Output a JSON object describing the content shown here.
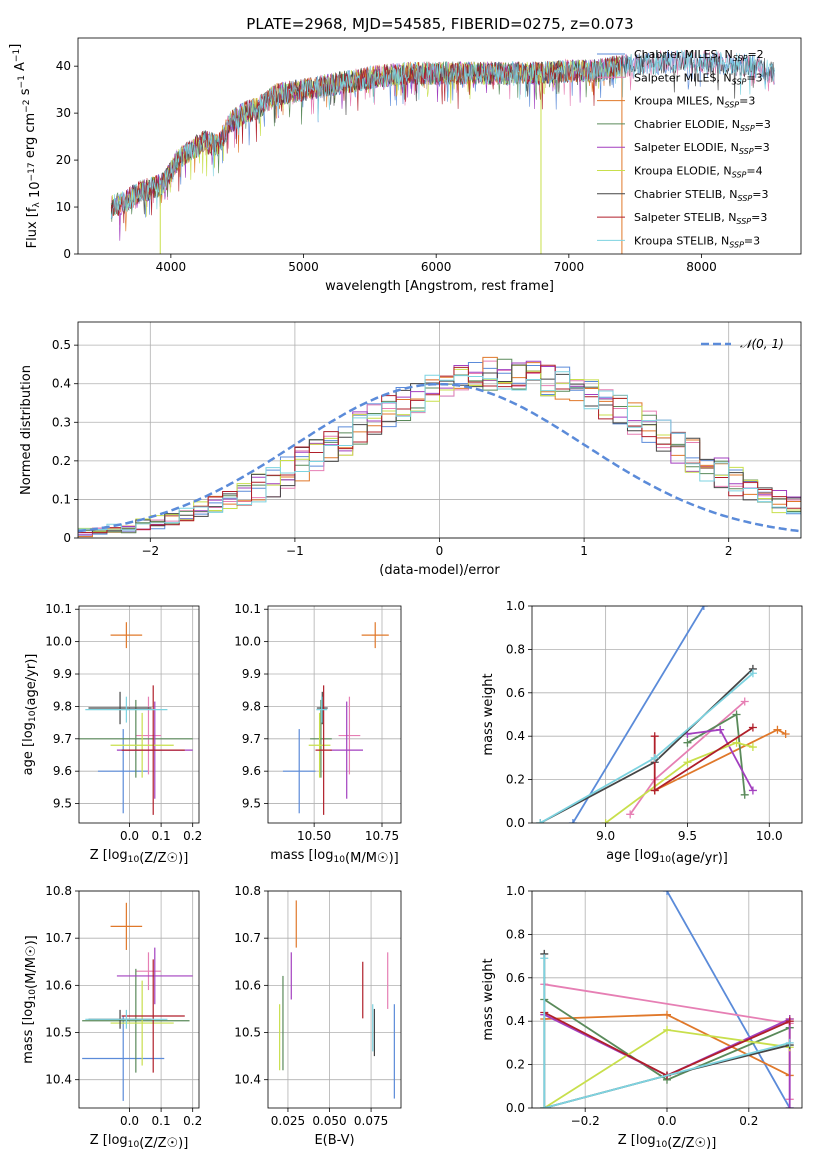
{
  "figure": {
    "title": "PLATE=2968, MJD=54585, FIBERID=0275, z=0.073"
  },
  "colors": {
    "Chabrier MILES": "#5b8bd9",
    "Salpeter MILES": "#e67fb4",
    "Kroupa MILES": "#e0782a",
    "Chabrier ELODIE": "#5a8a5a",
    "Salpeter ELODIE": "#a23fbf",
    "Kroupa ELODIE": "#c8df4c",
    "Chabrier STELIB": "#454545",
    "Salpeter STELIB": "#b01f2a",
    "Kroupa STELIB": "#7dd3e0",
    "normal_curve": "#5b8bd9"
  },
  "chart_data": [
    {
      "type": "line",
      "id": "spectrum",
      "xlabel": "wavelength [Angstrom, rest frame]",
      "ylabel": "Flux [f_λ 10^-17 erg cm^-2 s^-1 A^-1]",
      "xlim": [
        3300,
        8750
      ],
      "ylim": [
        0,
        46
      ],
      "xticks": [
        4000,
        5000,
        6000,
        7000,
        8000
      ],
      "yticks": [
        0,
        10,
        20,
        30,
        40
      ],
      "grid": false,
      "legend_position": "right",
      "legend": [
        {
          "label": "Chabrier MILES, N",
          "sub": "SSP",
          "suffix": "=2"
        },
        {
          "label": "Salpeter MILES, N",
          "sub": "SSP",
          "suffix": "=3"
        },
        {
          "label": "Kroupa MILES, N",
          "sub": "SSP",
          "suffix": "=3"
        },
        {
          "label": "Chabrier ELODIE, N",
          "sub": "SSP",
          "suffix": "=3"
        },
        {
          "label": "Salpeter ELODIE, N",
          "sub": "SSP",
          "suffix": "=3"
        },
        {
          "label": "Kroupa ELODIE, N",
          "sub": "SSP",
          "suffix": "=4"
        },
        {
          "label": "Chabrier STELIB, N",
          "sub": "SSP",
          "suffix": "=3"
        },
        {
          "label": "Salpeter STELIB, N",
          "sub": "SSP",
          "suffix": "=3"
        },
        {
          "label": "Kroupa STELIB, N",
          "sub": "SSP",
          "suffix": "=3"
        }
      ],
      "continuum": {
        "x": [
          3550,
          3650,
          3750,
          3850,
          3950,
          4050,
          4150,
          4250,
          4350,
          4450,
          4550,
          4650,
          4800,
          5000,
          5200,
          5400,
          5600,
          5800,
          6000,
          6200,
          6400,
          6600,
          6800,
          7000,
          7200,
          7400,
          7600,
          7800,
          8000,
          8200,
          8400,
          8550
        ],
        "y": [
          10,
          11,
          13,
          14,
          15,
          20,
          22,
          24,
          23,
          28,
          30,
          31,
          34,
          35,
          36,
          37,
          38,
          38.5,
          38.5,
          38.5,
          38.5,
          38.5,
          38.5,
          39,
          39,
          40,
          40.5,
          41,
          41,
          40.5,
          40,
          38.5
        ]
      },
      "spikes": [
        {
          "series": "Kroupa ELODIE",
          "x": 3920,
          "y": 0
        },
        {
          "series": "Kroupa ELODIE",
          "x": 6790,
          "y": 0
        },
        {
          "series": "Kroupa MILES",
          "x": 7400,
          "y": 0
        }
      ]
    },
    {
      "type": "histogram",
      "id": "residuals",
      "xlabel": "(data-model)/error",
      "ylabel": "Normed distribution",
      "xlim": [
        -2.5,
        2.5
      ],
      "ylim": [
        0,
        0.56
      ],
      "xticks": [
        -2,
        -1,
        0,
        1,
        2
      ],
      "yticks": [
        0,
        0.1,
        0.2,
        0.3,
        0.4,
        0.5
      ],
      "grid": true,
      "legend": [
        {
          "label": "𝒩(0, 1)"
        }
      ],
      "legend_position": "top-right",
      "bin_width": 0.1,
      "bin_start": -2.5,
      "base_values": [
        0.016,
        0.018,
        0.022,
        0.027,
        0.033,
        0.04,
        0.048,
        0.058,
        0.07,
        0.083,
        0.097,
        0.113,
        0.13,
        0.149,
        0.169,
        0.191,
        0.213,
        0.236,
        0.259,
        0.283,
        0.306,
        0.328,
        0.349,
        0.368,
        0.385,
        0.4,
        0.412,
        0.42,
        0.426,
        0.428,
        0.427,
        0.422,
        0.413,
        0.402,
        0.387,
        0.37,
        0.351,
        0.33,
        0.308,
        0.285,
        0.261,
        0.237,
        0.214,
        0.191,
        0.169,
        0.149,
        0.129,
        0.111,
        0.095,
        0.08
      ],
      "series_order": [
        "Chabrier MILES",
        "Salpeter MILES",
        "Kroupa MILES",
        "Chabrier ELODIE",
        "Salpeter ELODIE",
        "Kroupa ELODIE",
        "Chabrier STELIB",
        "Salpeter STELIB",
        "Kroupa STELIB"
      ]
    },
    {
      "type": "scatter",
      "id": "age-vs-Z",
      "xlabel": "Z [log10(Z/Z☉)]",
      "ylabel": "age  [log10(age/yr)]",
      "xlim": [
        -0.16,
        0.22
      ],
      "ylim": [
        9.44,
        10.11
      ],
      "xticks": [
        0.0,
        0.1,
        0.2
      ],
      "xticklabels": [
        "0.0",
        "0.1",
        "0.2"
      ],
      "yticks": [
        9.5,
        9.6,
        9.7,
        9.8,
        9.9,
        10.0,
        10.1
      ],
      "yticklabels": [
        "9.5",
        "9.6",
        "9.7",
        "9.8",
        "9.9",
        "10.0",
        "10.1"
      ],
      "grid": true,
      "points": [
        {
          "series": "Kroupa MILES",
          "x": -0.01,
          "y": 10.02,
          "xerr": 0.05,
          "yerr": 0.04
        },
        {
          "series": "Chabrier MILES",
          "x": -0.02,
          "y": 9.6,
          "xerr": 0.08,
          "yerr": 0.13
        },
        {
          "series": "Salpeter MILES",
          "x": 0.06,
          "y": 9.71,
          "xerr": 0.04,
          "yerr": 0.12
        },
        {
          "series": "Chabrier ELODIE",
          "x": 0.02,
          "y": 9.7,
          "xerr": 0.18,
          "yerr": 0.12
        },
        {
          "series": "Salpeter ELODIE",
          "x": 0.08,
          "y": 9.665,
          "xerr": 0.12,
          "yerr": 0.15
        },
        {
          "series": "Kroupa ELODIE",
          "x": 0.04,
          "y": 9.68,
          "xerr": 0.1,
          "yerr": 0.1
        },
        {
          "series": "Chabrier STELIB",
          "x": -0.03,
          "y": 9.795,
          "xerr": 0.1,
          "yerr": 0.05
        },
        {
          "series": "Salpeter STELIB",
          "x": 0.075,
          "y": 9.665,
          "xerr": 0.1,
          "yerr": 0.2
        },
        {
          "series": "Kroupa STELIB",
          "x": -0.01,
          "y": 9.79,
          "xerr": 0.13,
          "yerr": 0.04
        }
      ]
    },
    {
      "type": "scatter",
      "id": "age-vs-mass",
      "xlabel": "mass [log10(M/M☉)]",
      "ylabel": "",
      "xlim": [
        10.33,
        10.82
      ],
      "ylim": [
        9.44,
        10.11
      ],
      "xticks": [
        10.5,
        10.75
      ],
      "xticklabels": [
        "10.50",
        "10.75"
      ],
      "yticks": [
        9.5,
        9.6,
        9.7,
        9.8,
        9.9,
        10.0,
        10.1
      ],
      "yticklabels": [
        "9.5",
        "9.6",
        "9.7",
        "9.8",
        "9.9",
        "10.0",
        "10.1"
      ],
      "grid": true,
      "points": [
        {
          "series": "Kroupa MILES",
          "x": 10.725,
          "y": 10.02,
          "xerr": 0.05,
          "yerr": 0.04
        },
        {
          "series": "Chabrier MILES",
          "x": 10.445,
          "y": 9.6,
          "xerr": 0.06,
          "yerr": 0.13
        },
        {
          "series": "Salpeter MILES",
          "x": 10.63,
          "y": 9.71,
          "xerr": 0.04,
          "yerr": 0.12
        },
        {
          "series": "Chabrier ELODIE",
          "x": 10.525,
          "y": 9.7,
          "xerr": 0.04,
          "yerr": 0.12
        },
        {
          "series": "Salpeter ELODIE",
          "x": 10.62,
          "y": 9.665,
          "xerr": 0.06,
          "yerr": 0.15
        },
        {
          "series": "Kroupa ELODIE",
          "x": 10.52,
          "y": 9.68,
          "xerr": 0.04,
          "yerr": 0.1
        },
        {
          "series": "Chabrier STELIB",
          "x": 10.53,
          "y": 9.795,
          "xerr": 0.02,
          "yerr": 0.05
        },
        {
          "series": "Salpeter STELIB",
          "x": 10.535,
          "y": 9.665,
          "xerr": 0.03,
          "yerr": 0.2
        },
        {
          "series": "Kroupa STELIB",
          "x": 10.528,
          "y": 9.79,
          "xerr": 0.02,
          "yerr": 0.04
        }
      ]
    },
    {
      "type": "line",
      "id": "weight-vs-age",
      "xlabel": "age  [log10(age/yr)]",
      "ylabel": "mass weight",
      "xlim": [
        8.55,
        10.2
      ],
      "ylim": [
        0,
        1.0
      ],
      "xticks": [
        9.0,
        9.5,
        10.0
      ],
      "xticklabels": [
        "9.0",
        "9.5",
        "10.0"
      ],
      "yticks": [
        0.0,
        0.2,
        0.4,
        0.6,
        0.8,
        1.0
      ],
      "yticklabels": [
        "0.0",
        "0.2",
        "0.4",
        "0.6",
        "0.8",
        "1.0"
      ],
      "grid": true,
      "series": [
        {
          "name": "Chabrier MILES",
          "x": [
            8.8,
            9.6
          ],
          "y": [
            0.0,
            1.0
          ]
        },
        {
          "name": "Salpeter MILES",
          "x": [
            9.15,
            9.3,
            9.85
          ],
          "y": [
            0.04,
            0.2,
            0.56
          ]
        },
        {
          "name": "Kroupa MILES",
          "x": [
            9.3,
            10.05,
            10.1
          ],
          "y": [
            0.15,
            0.43,
            0.41
          ]
        },
        {
          "name": "Chabrier ELODIE",
          "x": [
            9.5,
            9.8,
            9.85
          ],
          "y": [
            0.37,
            0.5,
            0.13
          ]
        },
        {
          "name": "Salpeter ELODIE",
          "x": [
            9.5,
            9.7,
            9.9
          ],
          "y": [
            0.41,
            0.43,
            0.15
          ]
        },
        {
          "name": "Kroupa ELODIE",
          "x": [
            9.0,
            9.5,
            9.8,
            9.9
          ],
          "y": [
            0.0,
            0.28,
            0.37,
            0.35
          ]
        },
        {
          "name": "Chabrier STELIB",
          "x": [
            8.6,
            9.3,
            9.9
          ],
          "y": [
            0.0,
            0.28,
            0.71
          ]
        },
        {
          "name": "Salpeter STELIB",
          "x": [
            9.3,
            9.3,
            9.9
          ],
          "y": [
            0.4,
            0.15,
            0.44
          ]
        },
        {
          "name": "Kroupa STELIB",
          "x": [
            8.6,
            9.3,
            9.9
          ],
          "y": [
            0.0,
            0.3,
            0.69
          ]
        }
      ]
    },
    {
      "type": "scatter",
      "id": "mass-vs-Z",
      "xlabel": "Z [log10(Z/Z☉)]",
      "ylabel": "mass [log10(M/M☉)]",
      "xlim": [
        -0.16,
        0.22
      ],
      "ylim": [
        10.34,
        10.8
      ],
      "xticks": [
        0.0,
        0.1,
        0.2
      ],
      "xticklabels": [
        "0.0",
        "0.1",
        "0.2"
      ],
      "yticks": [
        10.4,
        10.5,
        10.6,
        10.7,
        10.8
      ],
      "yticklabels": [
        "10.4",
        "10.5",
        "10.6",
        "10.7",
        "10.8"
      ],
      "grid": true,
      "points": [
        {
          "series": "Kroupa MILES",
          "x": -0.01,
          "y": 10.725,
          "xerr": 0.05,
          "yerr": 0.05
        },
        {
          "series": "Chabrier MILES",
          "x": -0.02,
          "y": 10.445,
          "xerr": 0.13,
          "yerr": 0.09
        },
        {
          "series": "Salpeter MILES",
          "x": 0.06,
          "y": 10.63,
          "xerr": 0.04,
          "yerr": 0.04
        },
        {
          "series": "Chabrier ELODIE",
          "x": 0.02,
          "y": 10.525,
          "xerr": 0.17,
          "yerr": 0.11
        },
        {
          "series": "Salpeter ELODIE",
          "x": 0.08,
          "y": 10.62,
          "xerr": 0.12,
          "yerr": 0.06
        },
        {
          "series": "Kroupa ELODIE",
          "x": 0.04,
          "y": 10.52,
          "xerr": 0.1,
          "yerr": 0.09
        },
        {
          "series": "Chabrier STELIB",
          "x": -0.03,
          "y": 10.528,
          "xerr": 0.1,
          "yerr": 0.02
        },
        {
          "series": "Salpeter STELIB",
          "x": 0.075,
          "y": 10.535,
          "xerr": 0.1,
          "yerr": 0.12
        },
        {
          "series": "Kroupa STELIB",
          "x": -0.01,
          "y": 10.528,
          "xerr": 0.13,
          "yerr": 0.02
        }
      ]
    },
    {
      "type": "scatter",
      "id": "mass-vs-ebv",
      "xlabel": "E(B-V)",
      "ylabel": "",
      "xlim": [
        0.013,
        0.093
      ],
      "ylim": [
        10.34,
        10.8
      ],
      "xticks": [
        0.025,
        0.05,
        0.075
      ],
      "xticklabels": [
        "0.025",
        "0.050",
        "0.075"
      ],
      "yticks": [
        10.4,
        10.5,
        10.6,
        10.7,
        10.8
      ],
      "yticklabels": [
        "10.4",
        "10.5",
        "10.6",
        "10.7",
        "10.8"
      ],
      "grid": true,
      "points": [
        {
          "series": "Kroupa MILES",
          "x": 0.03,
          "y": 10.73,
          "xerr": 0.0,
          "yerr": 0.05
        },
        {
          "series": "Chabrier MILES",
          "x": 0.089,
          "y": 10.46,
          "xerr": 0.0,
          "yerr": 0.1
        },
        {
          "series": "Salpeter MILES",
          "x": 0.085,
          "y": 10.61,
          "xerr": 0.0,
          "yerr": 0.06
        },
        {
          "series": "Chabrier ELODIE",
          "x": 0.022,
          "y": 10.52,
          "xerr": 0.0,
          "yerr": 0.1
        },
        {
          "series": "Salpeter ELODIE",
          "x": 0.027,
          "y": 10.62,
          "xerr": 0.0,
          "yerr": 0.05
        },
        {
          "series": "Kroupa ELODIE",
          "x": 0.02,
          "y": 10.49,
          "xerr": 0.0,
          "yerr": 0.07
        },
        {
          "series": "Chabrier STELIB",
          "x": 0.077,
          "y": 10.5,
          "xerr": 0.0,
          "yerr": 0.05
        },
        {
          "series": "Salpeter STELIB",
          "x": 0.07,
          "y": 10.59,
          "xerr": 0.0,
          "yerr": 0.06
        },
        {
          "series": "Kroupa STELIB",
          "x": 0.076,
          "y": 10.51,
          "xerr": 0.0,
          "yerr": 0.05
        }
      ]
    },
    {
      "type": "line",
      "id": "weight-vs-Z",
      "xlabel": "Z [log10(Z/Z☉)]",
      "ylabel": "mass weight",
      "xlim": [
        -0.33,
        0.33
      ],
      "ylim": [
        0,
        1.0
      ],
      "xticks": [
        -0.2,
        0.0,
        0.2
      ],
      "xticklabels": [
        "−0.2",
        "0.0",
        "0.2"
      ],
      "yticks": [
        0.0,
        0.2,
        0.4,
        0.6,
        0.8,
        1.0
      ],
      "yticklabels": [
        "0.0",
        "0.2",
        "0.4",
        "0.6",
        "0.8",
        "1.0"
      ],
      "grid": true,
      "series": [
        {
          "name": "Chabrier MILES",
          "x": [
            0.0,
            0.3
          ],
          "y": [
            1.0,
            0.0
          ]
        },
        {
          "name": "Salpeter MILES",
          "x": [
            -0.3,
            0.3,
            0.3
          ],
          "y": [
            0.57,
            0.39,
            0.04
          ]
        },
        {
          "name": "Kroupa MILES",
          "x": [
            -0.3,
            0.0,
            0.3,
            0.3
          ],
          "y": [
            0.41,
            0.43,
            0.15,
            0.41
          ]
        },
        {
          "name": "Chabrier ELODIE",
          "x": [
            -0.3,
            0.0,
            0.3
          ],
          "y": [
            0.5,
            0.13,
            0.37
          ]
        },
        {
          "name": "Salpeter ELODIE",
          "x": [
            -0.3,
            0.0,
            0.3,
            0.3
          ],
          "y": [
            0.43,
            0.15,
            0.41,
            0.0
          ]
        },
        {
          "name": "Kroupa ELODIE",
          "x": [
            -0.3,
            0.0,
            0.3
          ],
          "y": [
            0.0,
            0.36,
            0.28
          ]
        },
        {
          "name": "Chabrier STELIB",
          "x": [
            -0.3,
            -0.3,
            0.0,
            0.3
          ],
          "y": [
            0.71,
            0.0,
            0.15,
            0.29
          ]
        },
        {
          "name": "Salpeter STELIB",
          "x": [
            -0.3,
            0.0,
            0.3
          ],
          "y": [
            0.44,
            0.15,
            0.4
          ]
        },
        {
          "name": "Kroupa STELIB",
          "x": [
            -0.3,
            -0.3,
            0.3
          ],
          "y": [
            0.69,
            0.0,
            0.3
          ]
        }
      ]
    }
  ]
}
